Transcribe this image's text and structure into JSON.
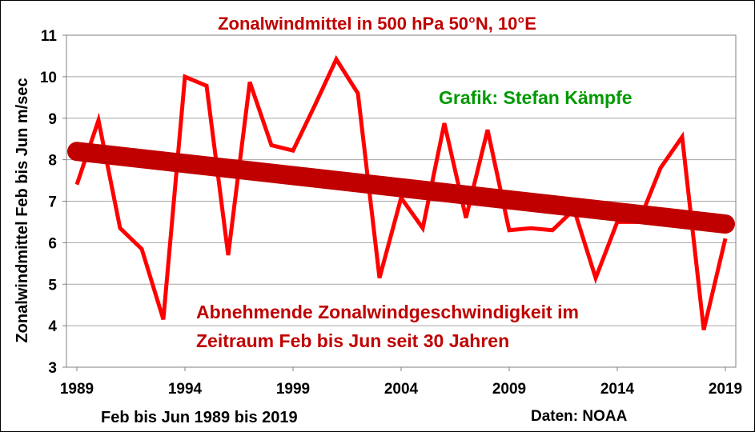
{
  "chart_data": {
    "type": "line",
    "title": "Zonalwindmittel in 500 hPa 50°N, 10°E",
    "ylabel": "Zonalwindmittel  Feb bis Jun m/sec",
    "xlabel": "Feb bis Jun 1989 bis 2019",
    "source": "Daten: NOAA",
    "credit": "Grafik: Stefan Kämpfe",
    "annotation_line1": "Abnehmende Zonalwindgeschwindigkeit im",
    "annotation_line2": "Zeitraum Feb bis Jun seit 30 Jahren",
    "xlim": [
      1989,
      2019
    ],
    "ylim": [
      3,
      11
    ],
    "x_ticks": [
      "1989",
      "1994",
      "1999",
      "2004",
      "2009",
      "2014",
      "2019"
    ],
    "y_ticks": [
      "3",
      "4",
      "5",
      "6",
      "7",
      "8",
      "9",
      "10",
      "11"
    ],
    "grid": true,
    "x": [
      1989,
      1990,
      1991,
      1992,
      1993,
      1994,
      1995,
      1996,
      1997,
      1998,
      1999,
      2000,
      2001,
      2002,
      2003,
      2004,
      2005,
      2006,
      2007,
      2008,
      2009,
      2010,
      2011,
      2012,
      2013,
      2014,
      2015,
      2016,
      2017,
      2018,
      2019
    ],
    "series": [
      {
        "values": [
          7.4,
          8.95,
          6.35,
          5.85,
          4.15,
          10.0,
          9.78,
          5.7,
          9.87,
          8.35,
          8.22,
          9.3,
          10.42,
          9.6,
          5.15,
          7.08,
          6.35,
          8.88,
          6.6,
          8.72,
          6.3,
          6.35,
          6.3,
          6.8,
          5.15,
          6.5,
          6.5,
          7.8,
          8.55,
          3.9,
          6.1
        ],
        "color": "#ff0000"
      }
    ],
    "trend": {
      "start": [
        1989,
        8.2
      ],
      "end": [
        2019,
        6.45
      ],
      "color": "#c00000"
    },
    "colors": {
      "title": "#c00000",
      "annotation": "#c00000",
      "credit": "#009900",
      "series": "#ff0000",
      "trend": "#c00000"
    }
  }
}
